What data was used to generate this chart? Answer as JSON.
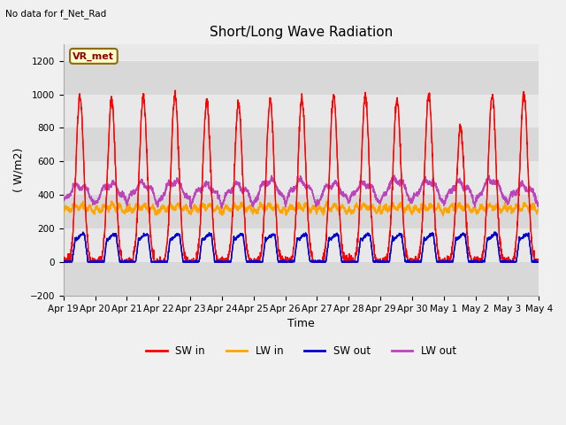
{
  "title": "Short/Long Wave Radiation",
  "top_left_text": "No data for f_Net_Rad",
  "ylabel": "( W/m2)",
  "xlabel": "Time",
  "legend_label": "VR_met",
  "ylim": [
    -200,
    1300
  ],
  "yticks": [
    -200,
    0,
    200,
    400,
    600,
    800,
    1000,
    1200
  ],
  "xtick_labels": [
    "Apr 19",
    "Apr 20",
    "Apr 21",
    "Apr 22",
    "Apr 23",
    "Apr 24",
    "Apr 25",
    "Apr 26",
    "Apr 27",
    "Apr 28",
    "Apr 29",
    "Apr 30",
    "May 1",
    "May 2",
    "May 3",
    "May 4"
  ],
  "sw_in_color": "#ff0000",
  "lw_in_color": "#ffa500",
  "sw_out_color": "#0000cc",
  "lw_out_color": "#bb44bb",
  "fig_bg_color": "#f0f0f0",
  "plot_bg_color": "#e8e8e8",
  "title_fontsize": 11,
  "label_fontsize": 9,
  "tick_fontsize": 7.5,
  "n_days": 15,
  "points_per_day": 144,
  "sw_in_peaks": [
    990,
    970,
    990,
    1000,
    960,
    950,
    970,
    975,
    1000,
    990,
    970,
    1000,
    800,
    995,
    1010
  ],
  "lw_in_base": 305,
  "lw_out_base": 350,
  "sw_out_peak": 150
}
